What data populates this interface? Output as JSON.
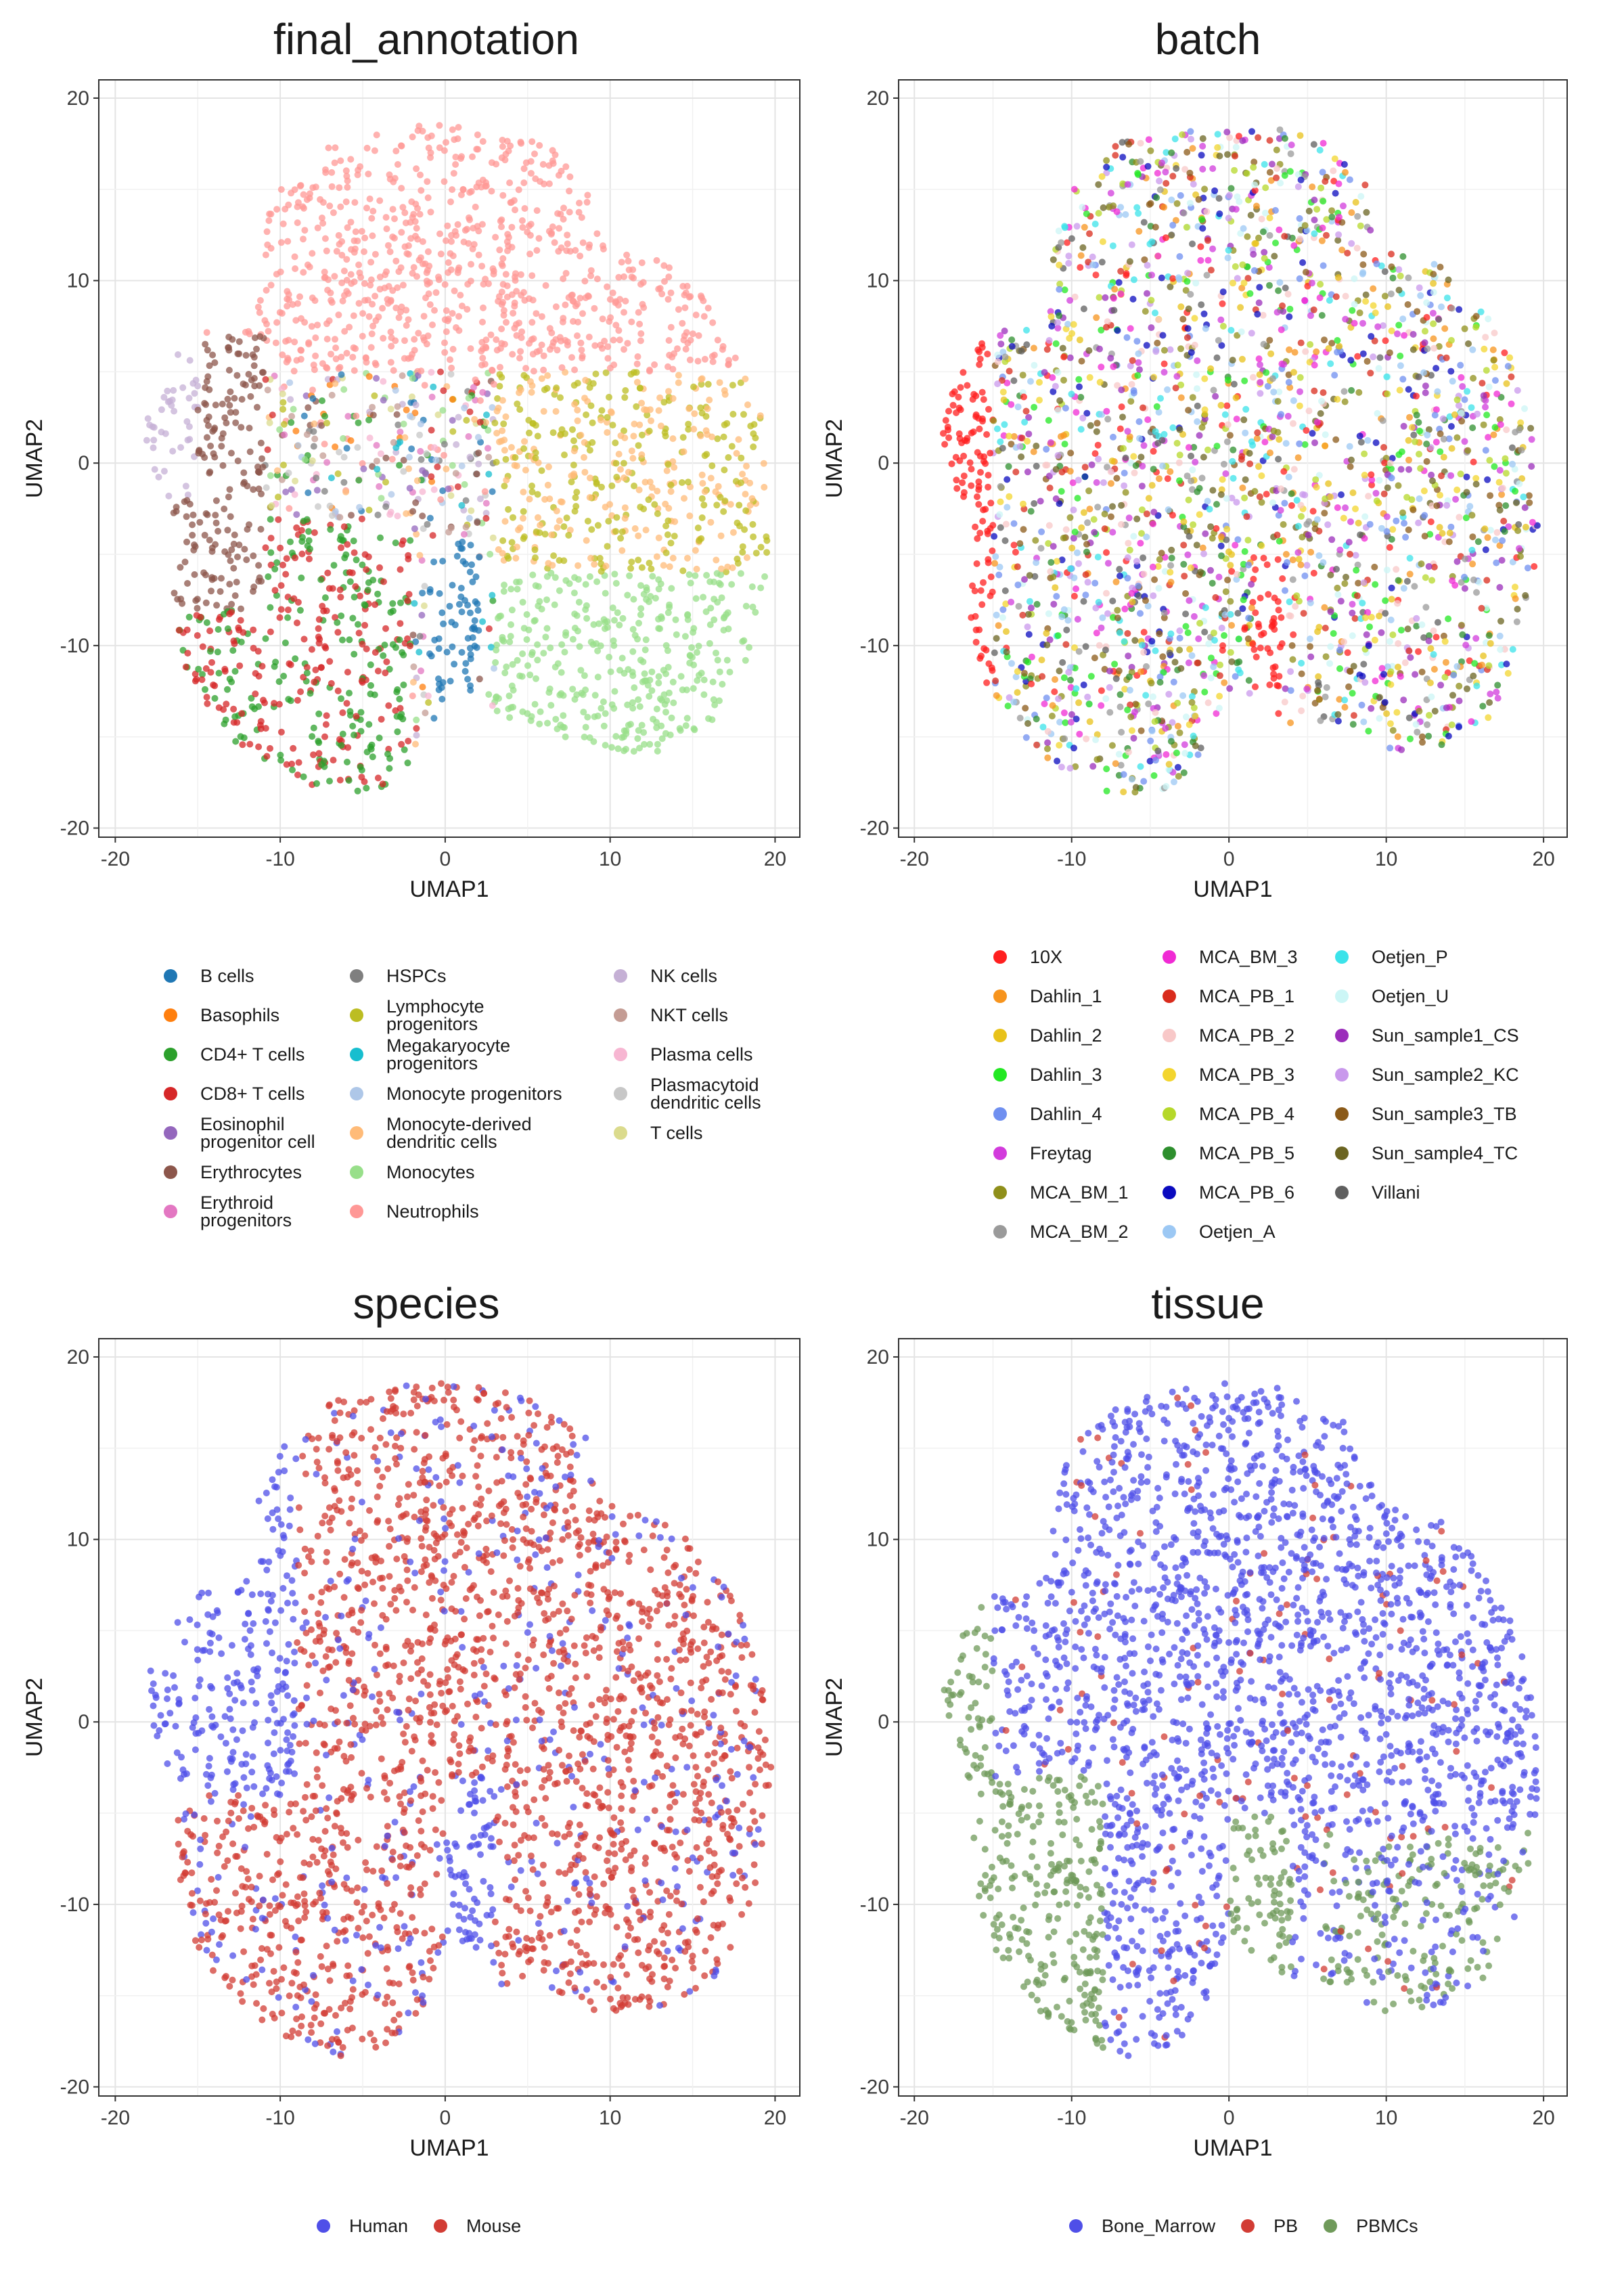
{
  "panels": [
    {
      "id": "final_annotation",
      "title": "final_annotation",
      "legend": {
        "columns": [
          [
            {
              "label": [
                "B cells"
              ],
              "color": "#1f77b4"
            },
            {
              "label": [
                "Basophils"
              ],
              "color": "#ff7f0e"
            },
            {
              "label": [
                "CD4+ T cells"
              ],
              "color": "#2ca02c"
            },
            {
              "label": [
                "CD8+ T cells"
              ],
              "color": "#d62728"
            },
            {
              "label": [
                "Eosinophil",
                "progenitor cell"
              ],
              "color": "#9467bd"
            },
            {
              "label": [
                "Erythrocytes"
              ],
              "color": "#8c564b"
            },
            {
              "label": [
                "Erythroid",
                "progenitors"
              ],
              "color": "#e377c2"
            }
          ],
          [
            {
              "label": [
                "HSPCs"
              ],
              "color": "#7f7f7f"
            },
            {
              "label": [
                "Lymphocyte",
                "progenitors"
              ],
              "color": "#bcbd22"
            },
            {
              "label": [
                "Megakaryocyte",
                "progenitors"
              ],
              "color": "#17becf"
            },
            {
              "label": [
                "Monocyte progenitors"
              ],
              "color": "#aec7e8"
            },
            {
              "label": [
                "Monocyte-derived",
                "dendritic cells"
              ],
              "color": "#ffbb78"
            },
            {
              "label": [
                "Monocytes"
              ],
              "color": "#98df8a"
            },
            {
              "label": [
                "Neutrophils"
              ],
              "color": "#ff9896"
            }
          ],
          [
            {
              "label": [
                "NK cells"
              ],
              "color": "#c5b0d5"
            },
            {
              "label": [
                "NKT cells"
              ],
              "color": "#c49c94"
            },
            {
              "label": [
                "Plasma cells"
              ],
              "color": "#f7b6d2"
            },
            {
              "label": [
                "Plasmacytoid",
                "dendritic cells"
              ],
              "color": "#c7c7c7"
            },
            {
              "label": [
                "T cells"
              ],
              "color": "#dbdb8d"
            }
          ]
        ]
      }
    },
    {
      "id": "batch",
      "title": "batch",
      "legend": {
        "columns": [
          [
            {
              "label": [
                "10X"
              ],
              "color": "#ff1f1f"
            },
            {
              "label": [
                "Dahlin_1"
              ],
              "color": "#f7941d"
            },
            {
              "label": [
                "Dahlin_2"
              ],
              "color": "#e8c21a"
            },
            {
              "label": [
                "Dahlin_3"
              ],
              "color": "#22e822"
            },
            {
              "label": [
                "Dahlin_4"
              ],
              "color": "#6f8ff0"
            },
            {
              "label": [
                "Freytag"
              ],
              "color": "#d23bdc"
            },
            {
              "label": [
                "MCA_BM_1"
              ],
              "color": "#8f8f1a"
            },
            {
              "label": [
                "MCA_BM_2"
              ],
              "color": "#9a9a9a"
            }
          ],
          [
            {
              "label": [
                "MCA_BM_3"
              ],
              "color": "#f02ad4"
            },
            {
              "label": [
                "MCA_PB_1"
              ],
              "color": "#d92b1c"
            },
            {
              "label": [
                "MCA_PB_2"
              ],
              "color": "#f8c8c8"
            },
            {
              "label": [
                "MCA_PB_3"
              ],
              "color": "#f3d52e"
            },
            {
              "label": [
                "MCA_PB_4"
              ],
              "color": "#b5d82a"
            },
            {
              "label": [
                "MCA_PB_5"
              ],
              "color": "#2e8f2e"
            },
            {
              "label": [
                "MCA_PB_6"
              ],
              "color": "#0a0abf"
            },
            {
              "label": [
                "Oetjen_A"
              ],
              "color": "#9cc8f4"
            }
          ],
          [
            {
              "label": [
                "Oetjen_P"
              ],
              "color": "#3be3ea"
            },
            {
              "label": [
                "Oetjen_U"
              ],
              "color": "#ccf6f6"
            },
            {
              "label": [
                "Sun_sample1_CS"
              ],
              "color": "#9b2dbb"
            },
            {
              "label": [
                "Sun_sample2_KC"
              ],
              "color": "#c998ec"
            },
            {
              "label": [
                "Sun_sample3_TB"
              ],
              "color": "#8b5a18"
            },
            {
              "label": [
                "Sun_sample4_TC"
              ],
              "color": "#6b6421"
            },
            {
              "label": [
                "Villani"
              ],
              "color": "#5f5f5f"
            }
          ]
        ]
      }
    },
    {
      "id": "species",
      "title": "species",
      "legend": {
        "inline": [
          {
            "label": "Human",
            "color": "#4f4fe8"
          },
          {
            "label": "Mouse",
            "color": "#d23c34"
          }
        ]
      }
    },
    {
      "id": "tissue",
      "title": "tissue",
      "legend": {
        "inline": [
          {
            "label": "Bone_Marrow",
            "color": "#4f4fe8"
          },
          {
            "label": "PB",
            "color": "#d23c34"
          },
          {
            "label": "PBMCs",
            "color": "#6f9a5a"
          }
        ]
      }
    }
  ],
  "chart_data": [
    {
      "type": "scatter",
      "title": "final_annotation",
      "xlabel": "UMAP1",
      "ylabel": "UMAP2",
      "xlim": [
        -21,
        21.5
      ],
      "ylim": [
        -20.5,
        21
      ],
      "xticks": [
        -20,
        -10,
        0,
        10,
        20
      ],
      "yticks": [
        -20,
        -10,
        0,
        10,
        20
      ],
      "x": [],
      "y": [],
      "grid": true,
      "legend": "bottom"
    },
    {
      "type": "scatter",
      "title": "batch",
      "xlabel": "UMAP1",
      "ylabel": "UMAP2",
      "xlim": [
        -21,
        21.5
      ],
      "ylim": [
        -20.5,
        21
      ],
      "xticks": [
        -20,
        -10,
        0,
        10,
        20
      ],
      "yticks": [
        -20,
        -10,
        0,
        10,
        20
      ],
      "x": [],
      "y": [],
      "grid": true,
      "legend": "bottom"
    },
    {
      "type": "scatter",
      "title": "species",
      "xlabel": "UMAP1",
      "ylabel": "UMAP2",
      "xlim": [
        -21,
        21.5
      ],
      "ylim": [
        -20.5,
        21
      ],
      "xticks": [
        -20,
        -10,
        0,
        10,
        20
      ],
      "yticks": [
        -20,
        -10,
        0,
        10,
        20
      ],
      "x": [],
      "y": [],
      "grid": true,
      "legend": "bottom"
    },
    {
      "type": "scatter",
      "title": "tissue",
      "xlabel": "UMAP1",
      "ylabel": "UMAP2",
      "xlim": [
        -21,
        21.5
      ],
      "ylim": [
        -20.5,
        21
      ],
      "xticks": [
        -20,
        -10,
        0,
        10,
        20
      ],
      "yticks": [
        -20,
        -10,
        0,
        10,
        20
      ],
      "x": [],
      "y": [],
      "grid": true,
      "legend": "bottom"
    }
  ]
}
